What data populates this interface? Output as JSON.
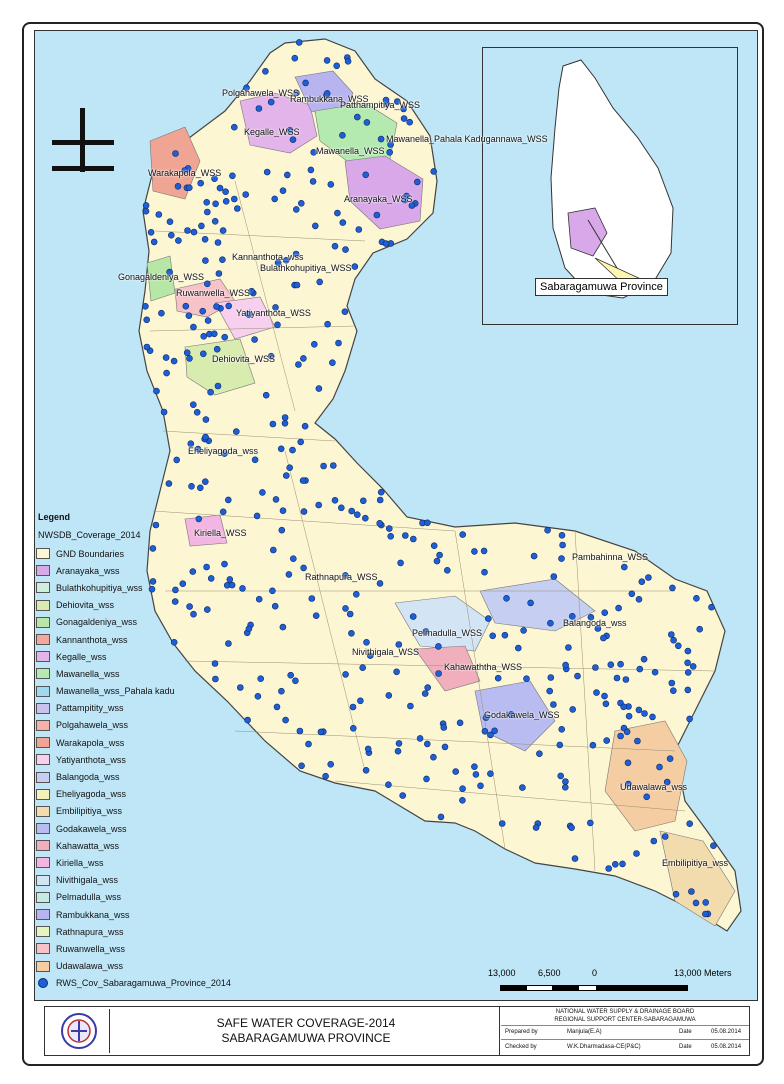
{
  "map_labels": {
    "polgahawela": "Polgahawela_WSS",
    "rambukkana": "Rambukkana_WSS",
    "patthampitiya": "Patthampitiya_WSS",
    "kegalle": "Kegalle_WSS",
    "mawanella_pahala": "Mawanella_Pahala Kadugannawa_WSS",
    "mawanella": "Mawanella_WSS",
    "warakapola": "Warakapola_WSS",
    "aranayaka": "Aranayaka_WSS",
    "kannanthota": "Kannanthota_wss",
    "bulathkohupitiya": "Bulathkohupitiya_WSS",
    "gonagaldeniya": "Gonagaldeniya_WSS",
    "ruwanwella": "Ruwanwella_WSS",
    "yatiyanthota": "Yatiyanthota_WSS",
    "dehiovita": "Dehiovita_WSS",
    "eheliyagoda": "Eheliyagoda_wss",
    "kiriella": "Kiriella_WSS",
    "rathnapura": "Rathnapura_WSS",
    "pambahinna": "Pambahinna_WSS",
    "pelmadulla": "Pelmadulla_WSS",
    "balangoda": "Balangoda_wss",
    "nivithigala": "Nivithigala_WSS",
    "kahawaththa": "Kahawaththa_WSS",
    "godakawela": "Godakawela_WSS",
    "udawalawa": "Udawalawa_wss",
    "embilipitiya": "Embilipitiya_wss"
  },
  "inset": {
    "label": "Sabaragamuwa Province"
  },
  "legend": {
    "title": "Legend",
    "layer": "NWSDB_Coverage_2014",
    "items": [
      {
        "label": "GND Boundaries",
        "color": "#fdf6d3"
      },
      {
        "label": "Aranayaka_wss",
        "color": "#d9a8e8"
      },
      {
        "label": "Bulathkohupitiya_wss",
        "color": "#cfeedd"
      },
      {
        "label": "Dehiovita_wss",
        "color": "#d8ecb0"
      },
      {
        "label": "Gonagaldeniya_wss",
        "color": "#b8e6a6"
      },
      {
        "label": "Kannanthota_wss",
        "color": "#f2a89a"
      },
      {
        "label": "Kegalle_wss",
        "color": "#e2b4ea"
      },
      {
        "label": "Mawanella_wss",
        "color": "#b4eab0"
      },
      {
        "label": "Mawanella_wss_Pahala kadu",
        "color": "#9fd8ef"
      },
      {
        "label": "Pattampitity_wss",
        "color": "#c9c2ef"
      },
      {
        "label": "Polgahawela_wss",
        "color": "#f4b3a8"
      },
      {
        "label": "Warakapola_wss",
        "color": "#f0a594"
      },
      {
        "label": "Yatiyanthota_wss",
        "color": "#f6d0ee"
      },
      {
        "label": "Balangoda_wss",
        "color": "#c6cff2"
      },
      {
        "label": "Eheliyagoda_wss",
        "color": "#f4f2b8"
      },
      {
        "label": "Embilipitiya_wss",
        "color": "#f2dcae"
      },
      {
        "label": "Godakawela_wss",
        "color": "#b9bcf0"
      },
      {
        "label": "Kahawatta_wss",
        "color": "#f1aebd"
      },
      {
        "label": "Kiriella_wss",
        "color": "#f3b6e2"
      },
      {
        "label": "Nivithigala_wss",
        "color": "#d3e4f5"
      },
      {
        "label": "Pelmadulla_wss",
        "color": "#c7e9e4"
      },
      {
        "label": "Rambukkana_wss",
        "color": "#b8b4ef"
      },
      {
        "label": "Rathnapura_wss",
        "color": "#e4f3bf"
      },
      {
        "label": "Ruwanwella_wss",
        "color": "#f7c2c8"
      },
      {
        "label": "Udawalawa_wss",
        "color": "#f5cda2"
      }
    ],
    "points_label": "RWS_Cov_Sabaragamuwa_Province_2014"
  },
  "scale": {
    "t1": "13,000",
    "t2": "6,500",
    "t3": "0",
    "t4": "13,000 Meters"
  },
  "title_block": {
    "line1": "SAFE WATER COVERAGE-2014",
    "line2": "SABARAGAMUWA PROVINCE",
    "org1": "NATIONAL WATER SUPPLY & DRAINAGE BOARD",
    "org2": "REGIONAL SUPPORT CENTER-SABARAGAMUWA",
    "prepared_label": "Prepared by",
    "prepared_by": "Manjula(E.A)",
    "checked_label": "Checked by",
    "checked_by": "W.K.Dharmadasa-CE(P&C)",
    "date_label": "Date",
    "date1": "05.08.2014",
    "date2": "05.08.2014"
  }
}
